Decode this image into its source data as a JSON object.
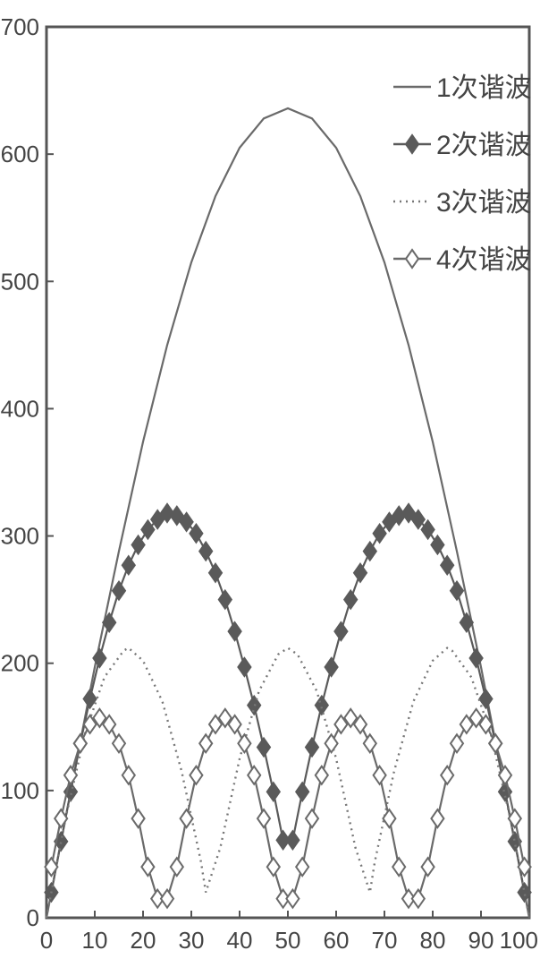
{
  "chart_data": {
    "type": "line",
    "title": "",
    "xlabel": "",
    "ylabel": "",
    "xlim": [
      0,
      100
    ],
    "ylim": [
      0,
      700
    ],
    "x_ticks": [
      0,
      10,
      20,
      30,
      40,
      50,
      60,
      70,
      80,
      90,
      100
    ],
    "y_ticks": [
      0,
      100,
      200,
      300,
      400,
      500,
      600,
      700
    ],
    "legend_position": "top-right",
    "grid": false,
    "series": [
      {
        "name": "1次谐波",
        "style": "solid",
        "marker": "none",
        "color": "#6a6a6a",
        "x": [
          0,
          5,
          10,
          15,
          20,
          25,
          30,
          35,
          40,
          45,
          50,
          55,
          60,
          65,
          70,
          75,
          80,
          85,
          90,
          95,
          100
        ],
        "y": [
          0,
          99,
          197,
          288,
          374,
          450,
          515,
          567,
          605,
          628,
          636,
          628,
          605,
          567,
          515,
          450,
          374,
          288,
          197,
          99,
          0
        ]
      },
      {
        "name": "2次谐波",
        "style": "solid",
        "marker": "filled-diamond",
        "color": "#5a5a5a",
        "x": [
          1,
          3,
          5,
          7,
          9,
          11,
          13,
          15,
          17,
          19,
          21,
          23,
          25,
          27,
          29,
          31,
          33,
          35,
          37,
          39,
          41,
          43,
          45,
          47,
          49,
          51,
          53,
          55,
          57,
          59,
          61,
          63,
          65,
          67,
          69,
          71,
          73,
          75,
          77,
          79,
          81,
          83,
          85,
          87,
          89,
          91,
          93,
          95,
          97,
          99
        ],
        "y": [
          20,
          60,
          99,
          137,
          172,
          204,
          232,
          257,
          277,
          293,
          305,
          313,
          318,
          316,
          311,
          302,
          288,
          271,
          250,
          225,
          197,
          167,
          134,
          99,
          61,
          61,
          99,
          134,
          167,
          197,
          225,
          250,
          271,
          288,
          302,
          311,
          316,
          318,
          313,
          305,
          293,
          277,
          257,
          232,
          204,
          172,
          137,
          99,
          60,
          20
        ]
      },
      {
        "name": "3次谐波",
        "style": "dotted",
        "marker": "none",
        "color": "#777777",
        "x": [
          0,
          4,
          8,
          12,
          16,
          17,
          20,
          24,
          28,
          32,
          33,
          36,
          40,
          44,
          48,
          50,
          52,
          56,
          60,
          64,
          67,
          68,
          72,
          76,
          80,
          83,
          84,
          88,
          92,
          96,
          100
        ],
        "y": [
          0,
          79,
          145,
          189,
          210,
          212,
          202,
          170,
          115,
          44,
          20,
          55,
          125,
          178,
          207,
          212,
          207,
          178,
          125,
          55,
          20,
          44,
          115,
          170,
          202,
          212,
          210,
          189,
          145,
          79,
          0
        ]
      },
      {
        "name": "4次谐波",
        "style": "solid",
        "marker": "open-diamond",
        "color": "#6a6a6a",
        "x": [
          1,
          3,
          5,
          7,
          9,
          11,
          13,
          15,
          17,
          19,
          21,
          23,
          25,
          27,
          29,
          31,
          33,
          35,
          37,
          39,
          41,
          43,
          45,
          47,
          49,
          51,
          53,
          55,
          57,
          59,
          61,
          63,
          65,
          67,
          69,
          71,
          73,
          75,
          77,
          79,
          81,
          83,
          85,
          87,
          89,
          91,
          93,
          95,
          97,
          99
        ],
        "y": [
          40,
          78,
          112,
          137,
          152,
          157,
          152,
          137,
          112,
          78,
          40,
          15,
          15,
          40,
          78,
          112,
          137,
          152,
          157,
          152,
          137,
          112,
          78,
          40,
          15,
          15,
          40,
          78,
          112,
          137,
          152,
          157,
          152,
          137,
          112,
          78,
          40,
          15,
          15,
          40,
          78,
          112,
          137,
          152,
          157,
          152,
          137,
          112,
          78,
          40
        ]
      }
    ]
  }
}
